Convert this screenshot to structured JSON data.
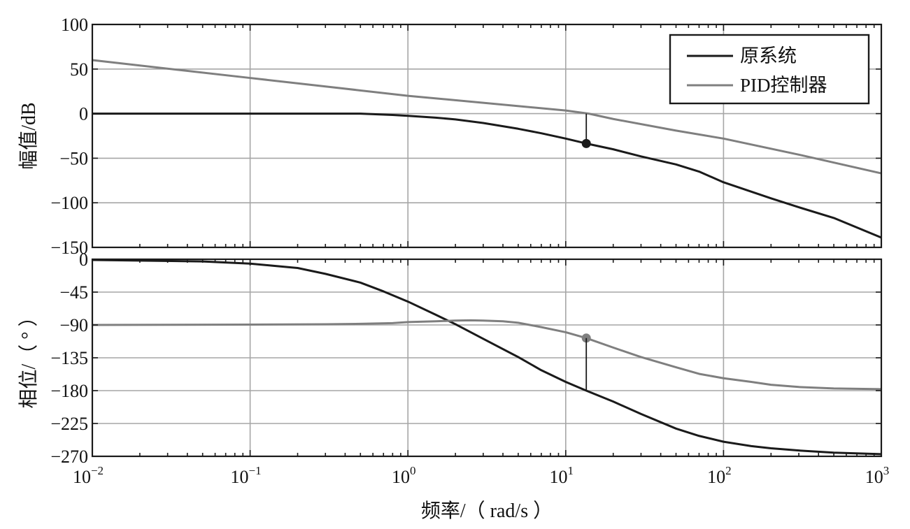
{
  "chart_data": [
    {
      "type": "line",
      "panel": "magnitude",
      "title": "",
      "xlabel": "",
      "ylabel": "幅值/dB",
      "xscale": "log",
      "xlim": [
        0.01,
        1000
      ],
      "ylim": [
        -150,
        100
      ],
      "yticks": [
        100,
        50,
        0,
        -50,
        -100,
        -150
      ],
      "ytick_labels": [
        "100",
        "50",
        "0",
        "−50",
        "−100",
        "−150"
      ],
      "grid": true,
      "legend": "top-right",
      "series": [
        {
          "name": "原系统",
          "color": "#1a1a1a",
          "x": [
            0.01,
            0.1,
            0.3,
            0.5,
            0.8,
            1,
            1.5,
            2,
            3,
            5,
            7,
            10,
            13.5,
            20,
            30,
            50,
            70,
            100,
            200,
            300,
            500,
            1000
          ],
          "y": [
            0,
            0,
            0,
            0,
            -1.5,
            -2.5,
            -4.5,
            -6.5,
            -10.5,
            -17,
            -22,
            -28,
            -33.5,
            -40,
            -48,
            -57,
            -65,
            -77,
            -95,
            -105,
            -117,
            -139
          ]
        },
        {
          "name": "PID控制器",
          "color": "#7f7f7f",
          "x": [
            0.01,
            0.1,
            1,
            10,
            14,
            20,
            50,
            100,
            300,
            1000
          ],
          "y": [
            60,
            40,
            20,
            3.5,
            0,
            -6,
            -19,
            -28,
            -46,
            -67
          ]
        }
      ],
      "annotations": [
        {
          "type": "marker",
          "series": "原系统",
          "x": 13.5,
          "y": -33.5
        },
        {
          "type": "vline",
          "x": 13.5,
          "y_from": -33.5,
          "y_to": 0
        }
      ]
    },
    {
      "type": "line",
      "panel": "phase",
      "title": "",
      "xlabel": "频率/（ rad/s ）",
      "ylabel": "相位/（ ° ）",
      "xscale": "log",
      "xlim": [
        0.01,
        1000
      ],
      "ylim": [
        -270,
        0
      ],
      "xticks": [
        0.01,
        0.1,
        1,
        10,
        100,
        1000
      ],
      "xtick_labels": [
        {
          "base": "10",
          "exp": "−2"
        },
        {
          "base": "10",
          "exp": "−1"
        },
        {
          "base": "10",
          "exp": "0"
        },
        {
          "base": "10",
          "exp": "1"
        },
        {
          "base": "10",
          "exp": "2"
        },
        {
          "base": "10",
          "exp": "3"
        }
      ],
      "yticks": [
        0,
        -45,
        -90,
        -135,
        -180,
        -225,
        -270
      ],
      "ytick_labels": [
        "0",
        "−45",
        "−90",
        "−135",
        "−180",
        "−225",
        "−270"
      ],
      "grid": true,
      "series": [
        {
          "name": "原系统",
          "color": "#1a1a1a",
          "x": [
            0.01,
            0.05,
            0.1,
            0.2,
            0.3,
            0.5,
            0.7,
            1,
            1.5,
            2,
            3,
            5,
            7,
            10,
            13.5,
            20,
            30,
            50,
            70,
            100,
            150,
            200,
            300,
            500,
            1000
          ],
          "y": [
            -1,
            -3,
            -6,
            -12,
            -20,
            -32,
            -44,
            -58,
            -76,
            -89,
            -109,
            -134,
            -152,
            -168,
            -180,
            -195,
            -212,
            -232,
            -242,
            -250,
            -256,
            -259,
            -262,
            -265,
            -267
          ]
        },
        {
          "name": "PID控制器",
          "color": "#7f7f7f",
          "x": [
            0.01,
            0.1,
            0.3,
            0.5,
            0.8,
            1,
            1.5,
            2,
            2.5,
            3,
            4,
            5,
            7,
            10,
            13.5,
            20,
            30,
            50,
            70,
            100,
            150,
            200,
            300,
            500,
            1000
          ],
          "y": [
            -90,
            -89.5,
            -89,
            -88.5,
            -87.5,
            -86,
            -85,
            -84,
            -83.7,
            -84,
            -85,
            -87,
            -93,
            -100,
            -108,
            -121,
            -134,
            -148,
            -157,
            -163,
            -168,
            -172,
            -175,
            -177,
            -178
          ]
        }
      ],
      "annotations": [
        {
          "type": "marker",
          "series": "PID控制器",
          "x": 13.5,
          "y": -108
        },
        {
          "type": "vline",
          "x": 13.5,
          "y_from": -108,
          "y_to": -180
        }
      ]
    }
  ]
}
